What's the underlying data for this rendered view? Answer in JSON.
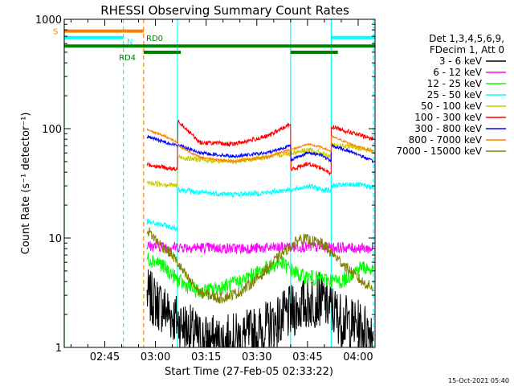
{
  "chart_data": {
    "type": "line",
    "title": "RHESSI Observing Summary Count Rates",
    "xlabel": "Start Time (27-Feb-05 02:33:22)",
    "ylabel": "Count Rate (s⁻¹ detector⁻¹)",
    "y_scale": "log",
    "ylim": [
      1,
      1000
    ],
    "xlim_minutes": [
      0,
      92
    ],
    "x_tick_labels": [
      {
        "t": 12,
        "label": "02:45"
      },
      {
        "t": 27,
        "label": "03:00"
      },
      {
        "t": 42,
        "label": "03:15"
      },
      {
        "t": 57,
        "label": "03:30"
      },
      {
        "t": 72,
        "label": "03:45"
      },
      {
        "t": 87,
        "label": "04:00"
      }
    ],
    "y_tick_labels": [
      {
        "v": 1,
        "label": "1"
      },
      {
        "v": 10,
        "label": "10"
      },
      {
        "v": 100,
        "label": "100"
      },
      {
        "v": 1000,
        "label": "1000"
      }
    ],
    "legend_header": [
      "Det 1,3,4,5,6,9,",
      "FDecim 1, Att 0"
    ],
    "legend_position": "right",
    "data_start_t": 24.5,
    "series": [
      {
        "name": "3 - 6 keV",
        "color": "#000000",
        "t": [
          24.5,
          30,
          35,
          40,
          46,
          52,
          58,
          64,
          70,
          76,
          82,
          88,
          91.5
        ],
        "values": [
          3.0,
          2.2,
          1.6,
          1.2,
          1.1,
          1.2,
          1.4,
          1.8,
          2.4,
          2.8,
          1.8,
          1.5,
          1.4
        ]
      },
      {
        "name": "6 - 12 keV",
        "color": "#ff00ff",
        "t": [
          24.5,
          30,
          40,
          50,
          60,
          70,
          80,
          91.5
        ],
        "values": [
          8.5,
          8.3,
          8.2,
          8.0,
          8.1,
          8.3,
          8.2,
          8.0
        ]
      },
      {
        "name": "12 - 25 keV",
        "color": "#00ff00",
        "t": [
          24.5,
          28,
          34,
          40,
          46,
          52,
          58,
          64,
          70,
          76,
          82,
          88,
          91.5
        ],
        "values": [
          6.5,
          6.0,
          4.0,
          3.2,
          3.5,
          4.0,
          5.0,
          6.0,
          4.5,
          4.2,
          4.0,
          5.5,
          5.0
        ]
      },
      {
        "name": "25 - 50 keV",
        "color": "#00ffff",
        "t": [
          24.5,
          30,
          33.5,
          33.6,
          40,
          50,
          60,
          67,
          67.1,
          72,
          76,
          79,
          79.1,
          86,
          91.5
        ],
        "values": [
          14,
          13,
          12,
          28,
          26,
          25,
          26,
          28,
          27,
          30,
          28,
          27,
          30,
          31,
          29
        ]
      },
      {
        "name": "50 - 100 keV",
        "color": "#cccc00",
        "t": [
          24.5,
          30,
          33.5,
          33.6,
          40,
          50,
          60,
          67,
          67.1,
          72,
          76,
          79,
          79.1,
          86,
          91.5
        ],
        "values": [
          32,
          31,
          30,
          55,
          52,
          50,
          55,
          60,
          60,
          64,
          60,
          55,
          70,
          68,
          62
        ]
      },
      {
        "name": "100 - 300 keV",
        "color": "#ff0000",
        "t": [
          24.5,
          30,
          33.5,
          33.6,
          40,
          50,
          60,
          67,
          67.1,
          72,
          76,
          79,
          79.1,
          86,
          91.5
        ],
        "values": [
          47,
          44,
          42,
          120,
          75,
          72,
          85,
          110,
          42,
          48,
          44,
          38,
          105,
          90,
          80
        ]
      },
      {
        "name": "300 - 800 keV",
        "color": "#0000ff",
        "t": [
          24.5,
          30,
          33.5,
          33.6,
          40,
          50,
          60,
          67,
          67.1,
          72,
          76,
          79,
          79.1,
          86,
          91.5
        ],
        "values": [
          85,
          75,
          70,
          72,
          60,
          56,
          60,
          70,
          52,
          60,
          58,
          50,
          70,
          60,
          50
        ]
      },
      {
        "name": "800 - 7000 keV",
        "color": "#ff8000",
        "t": [
          24.5,
          30,
          33.5,
          33.6,
          40,
          50,
          60,
          67,
          67.1,
          72,
          76,
          79,
          79.1,
          86,
          91.5
        ],
        "values": [
          98,
          85,
          75,
          70,
          55,
          50,
          55,
          65,
          64,
          72,
          68,
          62,
          85,
          70,
          62
        ]
      },
      {
        "name": "7000 - 15000 keV",
        "color": "#808000",
        "t": [
          24.5,
          28,
          32,
          36,
          40,
          46,
          52,
          58,
          64,
          70,
          76,
          82,
          88,
          91.5
        ],
        "values": [
          12,
          9,
          7,
          4.5,
          3.2,
          2.8,
          3.2,
          4.5,
          7,
          10,
          9,
          6,
          4,
          3.5
        ]
      }
    ],
    "vertical_markers": [
      {
        "t": 17.5,
        "color": "#00ffff",
        "style": "dashed"
      },
      {
        "t": 23.5,
        "color": "#ff8000",
        "style": "dashed"
      },
      {
        "t": 91.5,
        "color": "#00ffff",
        "style": "dashed"
      },
      {
        "t": 33.5,
        "color": "#00ffff",
        "style": "solid"
      },
      {
        "t": 67,
        "color": "#00ffff",
        "style": "solid"
      },
      {
        "t": 79,
        "color": "#00ffff",
        "style": "solid"
      },
      {
        "t": 0,
        "color": "#00ff00",
        "style": "solid"
      }
    ],
    "state_bars": [
      {
        "label": "S",
        "color": "#ff8000",
        "value": 780,
        "segments": [
          [
            0,
            23.5
          ]
        ]
      },
      {
        "label": "N",
        "color": "#00ffff",
        "value": 680,
        "segments": [
          [
            0,
            17.5
          ],
          [
            79,
            92
          ]
        ]
      },
      {
        "label": "RD0",
        "color": "#008000",
        "value": 570,
        "segments": [
          [
            0,
            92
          ]
        ]
      },
      {
        "label": "RD4",
        "color": "#008000",
        "value": 500,
        "segments": [
          [
            23.5,
            34.5
          ],
          [
            67,
            81
          ]
        ]
      }
    ],
    "state_labels": {
      "S": "S",
      "N": "N",
      "RD0": "RD0",
      "RD4": "RD4"
    },
    "timestamp": "15-Oct-2021 05:40"
  }
}
